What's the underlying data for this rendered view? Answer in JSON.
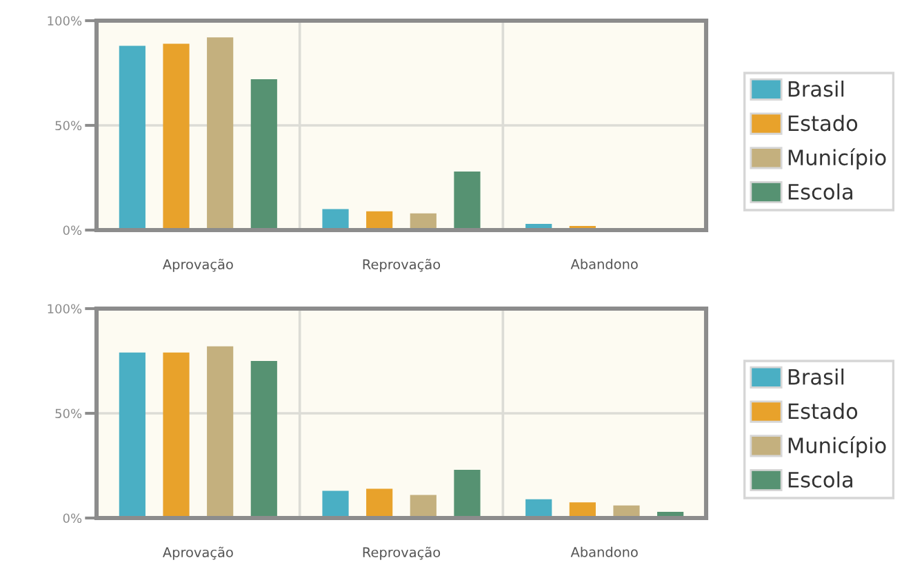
{
  "chart_data": [
    {
      "type": "bar",
      "categories": [
        "Aprovação",
        "Reprovação",
        "Abandono"
      ],
      "series": [
        {
          "name": "Brasil",
          "color": "#4aafc4",
          "values": [
            88,
            10,
            3
          ]
        },
        {
          "name": "Estado",
          "color": "#e8a22b",
          "values": [
            89,
            9,
            2
          ]
        },
        {
          "name": "Município",
          "color": "#c4b07e",
          "values": [
            92,
            8,
            0
          ]
        },
        {
          "name": "Escola",
          "color": "#569272",
          "values": [
            72,
            28,
            0
          ]
        }
      ],
      "ylim": [
        0,
        100
      ],
      "yticks": [
        {
          "value": 0,
          "label": "0%"
        },
        {
          "value": 50,
          "label": "50%"
        },
        {
          "value": 100,
          "label": "100%"
        }
      ],
      "grid": true,
      "legend": "right"
    },
    {
      "type": "bar",
      "categories": [
        "Aprovação",
        "Reprovação",
        "Abandono"
      ],
      "series": [
        {
          "name": "Brasil",
          "color": "#4aafc4",
          "values": [
            79,
            13,
            9
          ]
        },
        {
          "name": "Estado",
          "color": "#e8a22b",
          "values": [
            79,
            14,
            7.5
          ]
        },
        {
          "name": "Município",
          "color": "#c4b07e",
          "values": [
            82,
            11,
            6
          ]
        },
        {
          "name": "Escola",
          "color": "#569272",
          "values": [
            75,
            23,
            3
          ]
        }
      ],
      "ylim": [
        0,
        100
      ],
      "yticks": [
        {
          "value": 0,
          "label": "0%"
        },
        {
          "value": 50,
          "label": "50%"
        },
        {
          "value": 100,
          "label": "100%"
        }
      ],
      "grid": true,
      "legend": "right"
    }
  ]
}
